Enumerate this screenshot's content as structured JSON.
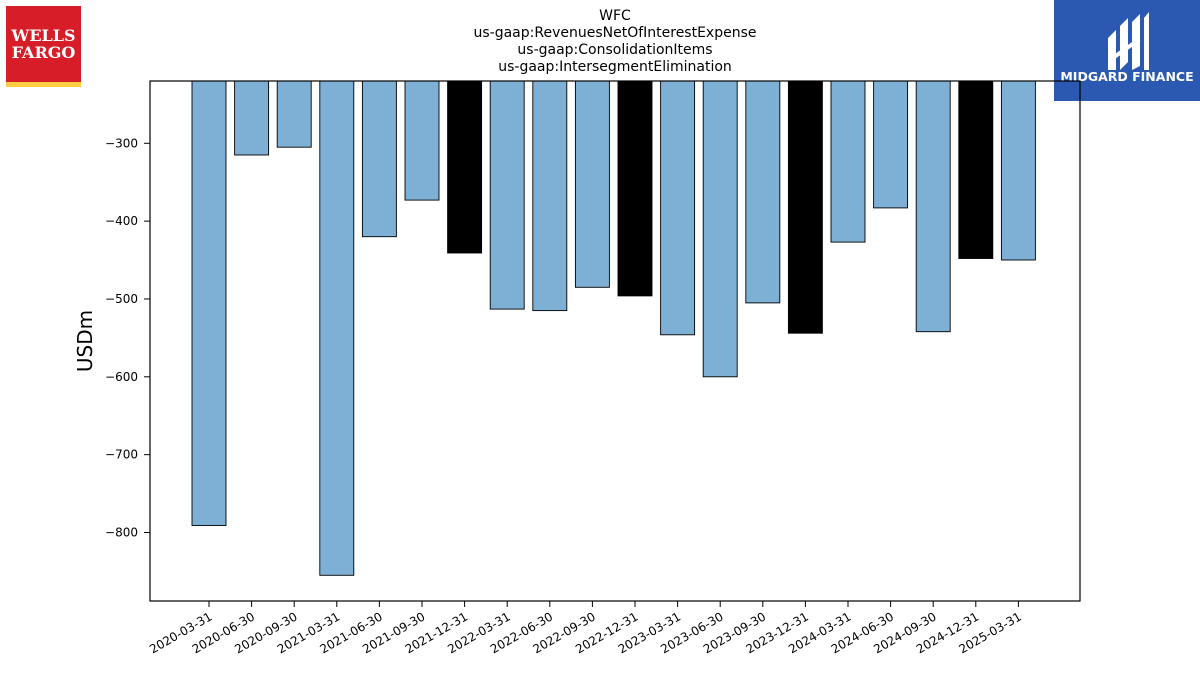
{
  "logos": {
    "left": {
      "line1": "WELLS",
      "line2": "FARGO",
      "color": "#d71e28",
      "stripe_color": "#ffcd41"
    },
    "right": {
      "text": "MIDGARD FINANCE",
      "color": "#2b58b0"
    }
  },
  "chart_data": {
    "type": "bar",
    "title": [
      "WFC",
      "us-gaap:RevenuesNetOfInterestExpense",
      "us-gaap:ConsolidationItems",
      "us-gaap:IntersegmentElimination"
    ],
    "xlabel": "",
    "ylabel": "USDm",
    "ylim": [
      -888,
      -220
    ],
    "yticks": [
      -300,
      -400,
      -500,
      -600,
      -700,
      -800
    ],
    "ytick_labels": [
      "−300",
      "−400",
      "−500",
      "−600",
      "−700",
      "−800"
    ],
    "grid": false,
    "colors": {
      "quarter": "#7eafd4",
      "year_end": "#000000",
      "edge": "#000000"
    },
    "categories": [
      "2020-03-31",
      "2020-06-30",
      "2020-09-30",
      "2021-03-31",
      "2021-06-30",
      "2021-09-30",
      "2021-12-31",
      "2022-03-31",
      "2022-06-30",
      "2022-09-30",
      "2022-12-31",
      "2023-03-31",
      "2023-06-30",
      "2023-09-30",
      "2023-12-31",
      "2024-03-31",
      "2024-06-30",
      "2024-09-30",
      "2024-12-31",
      "2025-03-31"
    ],
    "values": [
      -791,
      -315,
      -305,
      -855,
      -420,
      -373,
      -441,
      -513,
      -515,
      -485,
      -496,
      -546,
      -600,
      -505,
      -544,
      -427,
      -383,
      -542,
      -448,
      -450
    ],
    "highlight": [
      "quarter",
      "quarter",
      "quarter",
      "quarter",
      "quarter",
      "quarter",
      "year_end",
      "quarter",
      "quarter",
      "quarter",
      "year_end",
      "quarter",
      "quarter",
      "quarter",
      "year_end",
      "quarter",
      "quarter",
      "quarter",
      "year_end",
      "quarter"
    ]
  }
}
